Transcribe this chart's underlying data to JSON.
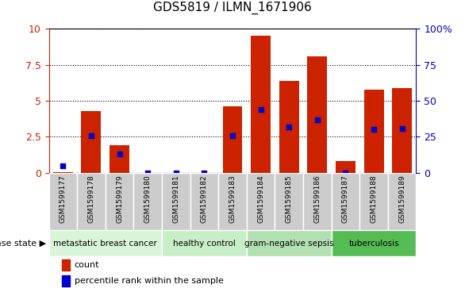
{
  "title": "GDS5819 / ILMN_1671906",
  "samples": [
    "GSM1599177",
    "GSM1599178",
    "GSM1599179",
    "GSM1599180",
    "GSM1599181",
    "GSM1599182",
    "GSM1599183",
    "GSM1599184",
    "GSM1599185",
    "GSM1599186",
    "GSM1599187",
    "GSM1599188",
    "GSM1599189"
  ],
  "counts": [
    0.05,
    4.3,
    1.9,
    0.0,
    0.0,
    0.0,
    4.6,
    9.5,
    6.4,
    8.1,
    0.8,
    5.8,
    5.9
  ],
  "percentile_ranks": [
    5,
    26,
    13,
    0,
    0,
    0,
    26,
    44,
    32,
    37,
    0,
    30,
    31
  ],
  "ylim_left": [
    0,
    10
  ],
  "ylim_right": [
    0,
    100
  ],
  "yticks_left": [
    0,
    2.5,
    5.0,
    7.5,
    10
  ],
  "yticks_right": [
    0,
    25,
    50,
    75,
    100
  ],
  "bar_color": "#cc2200",
  "dot_color": "#0000cc",
  "disease_groups": [
    {
      "label": "metastatic breast cancer",
      "start": 0,
      "end": 4,
      "color": "#d9f5d9"
    },
    {
      "label": "healthy control",
      "start": 4,
      "end": 7,
      "color": "#c8eec8"
    },
    {
      "label": "gram-negative sepsis",
      "start": 7,
      "end": 10,
      "color": "#b2e0b2"
    },
    {
      "label": "tuberculosis",
      "start": 10,
      "end": 13,
      "color": "#55bb55"
    }
  ],
  "disease_label": "disease state",
  "legend_count_label": "count",
  "legend_percentile_label": "percentile rank within the sample",
  "sample_bg_color": "#cccccc",
  "plot_bg": "#ffffff",
  "grid_color": "#000000",
  "left_axis_color": "#cc2200",
  "right_axis_color": "#0000cc",
  "title_fontsize": 11
}
